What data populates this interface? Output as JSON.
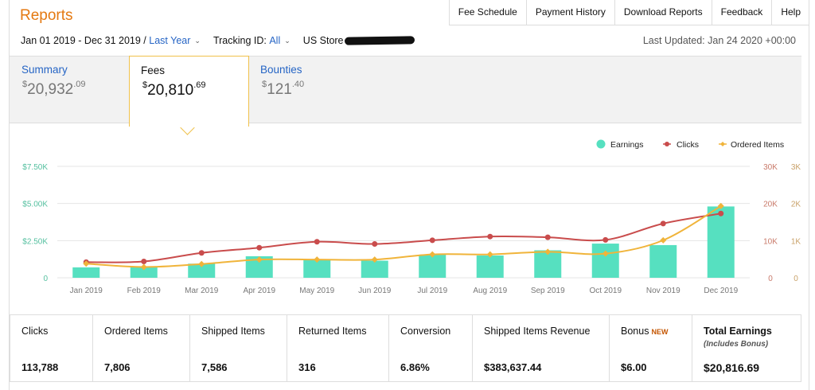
{
  "header": {
    "title": "Reports",
    "nav": [
      "Fee Schedule",
      "Payment History",
      "Download Reports",
      "Feedback",
      "Help"
    ]
  },
  "filters": {
    "date_range": "Jan 01 2019 - Dec 31 2019 /",
    "period": "Last Year",
    "tracking_label": "Tracking ID:",
    "tracking_value": "All",
    "store": "US Store",
    "last_updated": "Last Updated: Jan 24 2020 +00:00"
  },
  "tabs": [
    {
      "label": "Summary",
      "currency": "$",
      "whole": "20,932",
      "cents": ".09",
      "active": false
    },
    {
      "label": "Fees",
      "currency": "$",
      "whole": "20,810",
      "cents": ".69",
      "active": true
    },
    {
      "label": "Bounties",
      "currency": "$",
      "whole": "121",
      "cents": ".40",
      "active": false
    }
  ],
  "chart_data": {
    "type": "bar",
    "categories": [
      "Jan 2019",
      "Feb 2019",
      "Mar 2019",
      "Apr 2019",
      "May 2019",
      "Jun 2019",
      "Jul 2019",
      "Aug 2019",
      "Sep 2019",
      "Oct 2019",
      "Nov 2019",
      "Dec 2019"
    ],
    "series": [
      {
        "name": "Earnings",
        "type": "bar",
        "axis": "left",
        "color": "#56e0c0",
        "values": [
          700,
          700,
          950,
          1450,
          1250,
          1150,
          1550,
          1500,
          1850,
          2300,
          2200,
          4800
        ]
      },
      {
        "name": "Clicks",
        "type": "line",
        "axis": "right-1",
        "color": "#c94c4c",
        "values": [
          4200,
          4400,
          6700,
          8100,
          9700,
          9100,
          10100,
          11100,
          10900,
          10200,
          14600,
          17300
        ]
      },
      {
        "name": "Ordered Items",
        "type": "line",
        "axis": "right-2",
        "color": "#f0b43a",
        "values": [
          380,
          290,
          370,
          490,
          490,
          490,
          630,
          630,
          700,
          650,
          1010,
          1930
        ]
      }
    ],
    "axes": {
      "left": {
        "ticks": [
          "0",
          "$2.50K",
          "$5.00K",
          "$7.50K"
        ],
        "range": [
          0,
          7500
        ],
        "color": "#56c0a0"
      },
      "right1": {
        "ticks": [
          "0",
          "10K",
          "20K",
          "30K"
        ],
        "range": [
          0,
          30000
        ],
        "color": "#c97a6a"
      },
      "right2": {
        "ticks": [
          "0",
          "1K",
          "2K",
          "3K"
        ],
        "range": [
          0,
          3000
        ],
        "color": "#c9a26a"
      }
    },
    "grid": true,
    "legend_position": "top-right"
  },
  "stats": [
    {
      "label": "Clicks",
      "value": "113,788"
    },
    {
      "label": "Ordered Items",
      "value": "7,806"
    },
    {
      "label": "Shipped Items",
      "value": "7,586"
    },
    {
      "label": "Returned Items",
      "value": "316"
    },
    {
      "label": "Conversion",
      "value": "6.86%"
    },
    {
      "label": "Shipped Items Revenue",
      "value": "$383,637.44"
    },
    {
      "label": "Bonus",
      "badge": "NEW",
      "value": "$6.00"
    },
    {
      "label": "Total Earnings",
      "sublabel": "(Includes Bonus)",
      "value": "$20,816.69"
    }
  ]
}
